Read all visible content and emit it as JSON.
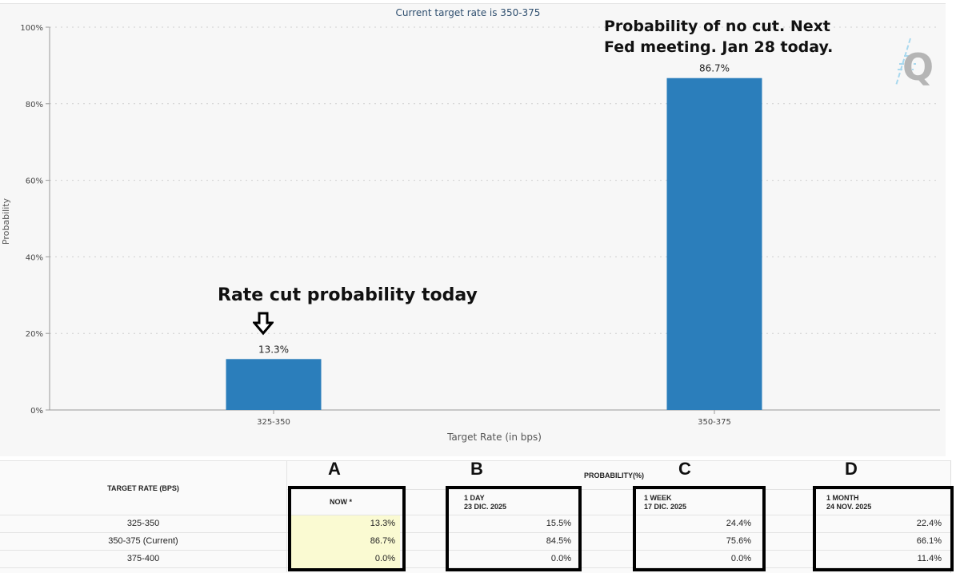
{
  "chart_data": {
    "type": "bar",
    "title": "Current target rate is 350-375",
    "xlabel": "Target Rate (in bps)",
    "ylabel": "Probability",
    "categories": [
      "325-350",
      "350-375"
    ],
    "values": [
      13.3,
      86.7
    ],
    "data_labels": [
      "13.3%",
      "86.7%"
    ],
    "ylim": [
      0,
      100
    ],
    "yticks": [
      "0%",
      "20%",
      "40%",
      "60%",
      "80%",
      "100%"
    ],
    "grid": true,
    "bar_color": "#2b7ebb"
  },
  "annotations": {
    "no_cut": "Probability of no cut. Next Fed meeting. Jan 28 today.",
    "no_cut_line1": "Probability of no cut. Next",
    "no_cut_line2": "Fed meeting. Jan 28 today.",
    "cut": "Rate cut probability today",
    "arrow_icon": "down-arrow-icon",
    "logo": "Q"
  },
  "table": {
    "target_header": "TARGET RATE (BPS)",
    "prob_header": "PROBABILITY(%)",
    "columns": [
      {
        "letter": "A",
        "label": "NOW *",
        "date": ""
      },
      {
        "letter": "B",
        "label": "1 DAY",
        "date": "23 DIC. 2025"
      },
      {
        "letter": "C",
        "label": "1 WEEK",
        "date": "17 DIC. 2025"
      },
      {
        "letter": "D",
        "label": "1 MONTH",
        "date": "24 NOV. 2025"
      }
    ],
    "rows": [
      {
        "rate": "325-350",
        "values": [
          "13.3%",
          "15.5%",
          "24.4%",
          "22.4%"
        ]
      },
      {
        "rate": "350-375 (Current)",
        "values": [
          "86.7%",
          "84.5%",
          "75.6%",
          "66.1%"
        ]
      },
      {
        "rate": "375-400",
        "values": [
          "0.0%",
          "0.0%",
          "0.0%",
          "11.4%"
        ]
      }
    ],
    "now_highlight": "#fafad2"
  }
}
